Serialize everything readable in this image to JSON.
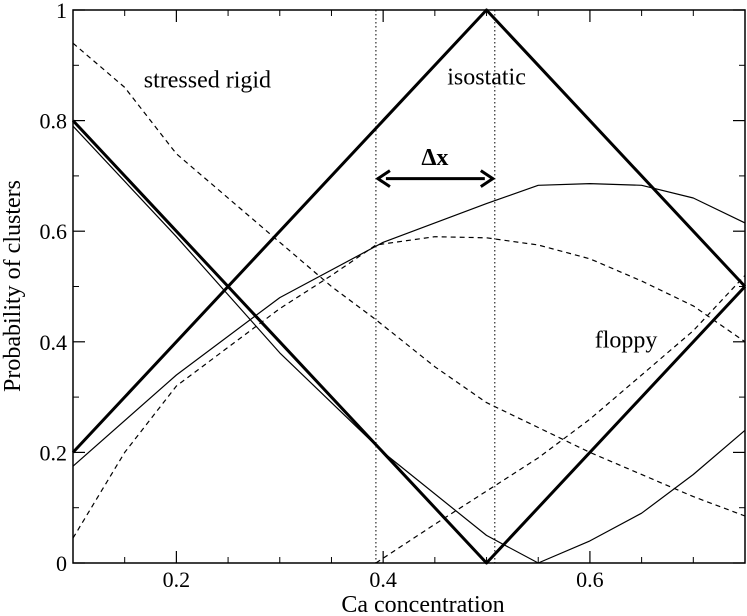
{
  "chart_data": {
    "type": "line",
    "title": "",
    "xlabel": "Ca concentration",
    "ylabel": "Probability of clusters",
    "xlim": [
      0.1,
      0.75
    ],
    "ylim": [
      0,
      1
    ],
    "xticks": [
      0.2,
      0.4,
      0.6
    ],
    "xtick_labels": [
      "0.2",
      "0.4",
      "0.6"
    ],
    "yticks": [
      0,
      0.2,
      0.4,
      0.6,
      0.8,
      1
    ],
    "ytick_labels": [
      "0",
      "0.2",
      "0.4",
      "0.6",
      "0.8",
      "1"
    ],
    "grid": false,
    "legend": "none",
    "vertical_lines": [
      0.393,
      0.508
    ],
    "annotations": [
      {
        "text": "stressed rigid",
        "x": 0.23,
        "y": 0.86
      },
      {
        "text": "isostatic",
        "x": 0.5,
        "y": 0.865
      },
      {
        "text": "floppy",
        "x": 0.635,
        "y": 0.39
      },
      {
        "text": "Δx",
        "x": 0.45,
        "y": 0.72,
        "bold": true
      }
    ],
    "arrow": {
      "x_start": 0.393,
      "x_end": 0.508,
      "y": 0.695
    },
    "series": [
      {
        "style": "thick-solid",
        "x": [
          0.1,
          0.5,
          0.75
        ],
        "y": [
          0.2,
          1.0,
          0.5
        ]
      },
      {
        "style": "thick-solid",
        "x": [
          0.1,
          0.5,
          0.75
        ],
        "y": [
          0.8,
          0.0,
          0.5
        ]
      },
      {
        "style": "thin-solid",
        "x": [
          0.1,
          0.2,
          0.3,
          0.4,
          0.5,
          0.55
        ],
        "y": [
          0.79,
          0.59,
          0.38,
          0.2,
          0.05,
          0.0
        ]
      },
      {
        "style": "thin-solid",
        "x": [
          0.1,
          0.2,
          0.3,
          0.4,
          0.5,
          0.55,
          0.6,
          0.65,
          0.7,
          0.75
        ],
        "y": [
          0.175,
          0.34,
          0.48,
          0.58,
          0.65,
          0.683,
          0.686,
          0.683,
          0.66,
          0.615
        ]
      },
      {
        "style": "thin-solid",
        "x": [
          0.55,
          0.6,
          0.65,
          0.7,
          0.75
        ],
        "y": [
          0.0,
          0.04,
          0.09,
          0.16,
          0.24
        ]
      },
      {
        "style": "dashed",
        "x": [
          0.1,
          0.15,
          0.2,
          0.3,
          0.35,
          0.393,
          0.45,
          0.5,
          0.6,
          0.7,
          0.75
        ],
        "y": [
          0.94,
          0.86,
          0.74,
          0.58,
          0.5,
          0.44,
          0.355,
          0.29,
          0.2,
          0.12,
          0.085
        ]
      },
      {
        "style": "dashed",
        "x": [
          0.1,
          0.15,
          0.2,
          0.3,
          0.35,
          0.393,
          0.45,
          0.5,
          0.55,
          0.6,
          0.65,
          0.7,
          0.75
        ],
        "y": [
          0.045,
          0.2,
          0.32,
          0.46,
          0.52,
          0.575,
          0.59,
          0.588,
          0.575,
          0.55,
          0.51,
          0.465,
          0.4
        ]
      },
      {
        "style": "dashed",
        "x": [
          0.393,
          0.45,
          0.5,
          0.55,
          0.6,
          0.65,
          0.7,
          0.75
        ],
        "y": [
          0.0,
          0.07,
          0.13,
          0.19,
          0.26,
          0.34,
          0.42,
          0.52
        ]
      }
    ]
  }
}
